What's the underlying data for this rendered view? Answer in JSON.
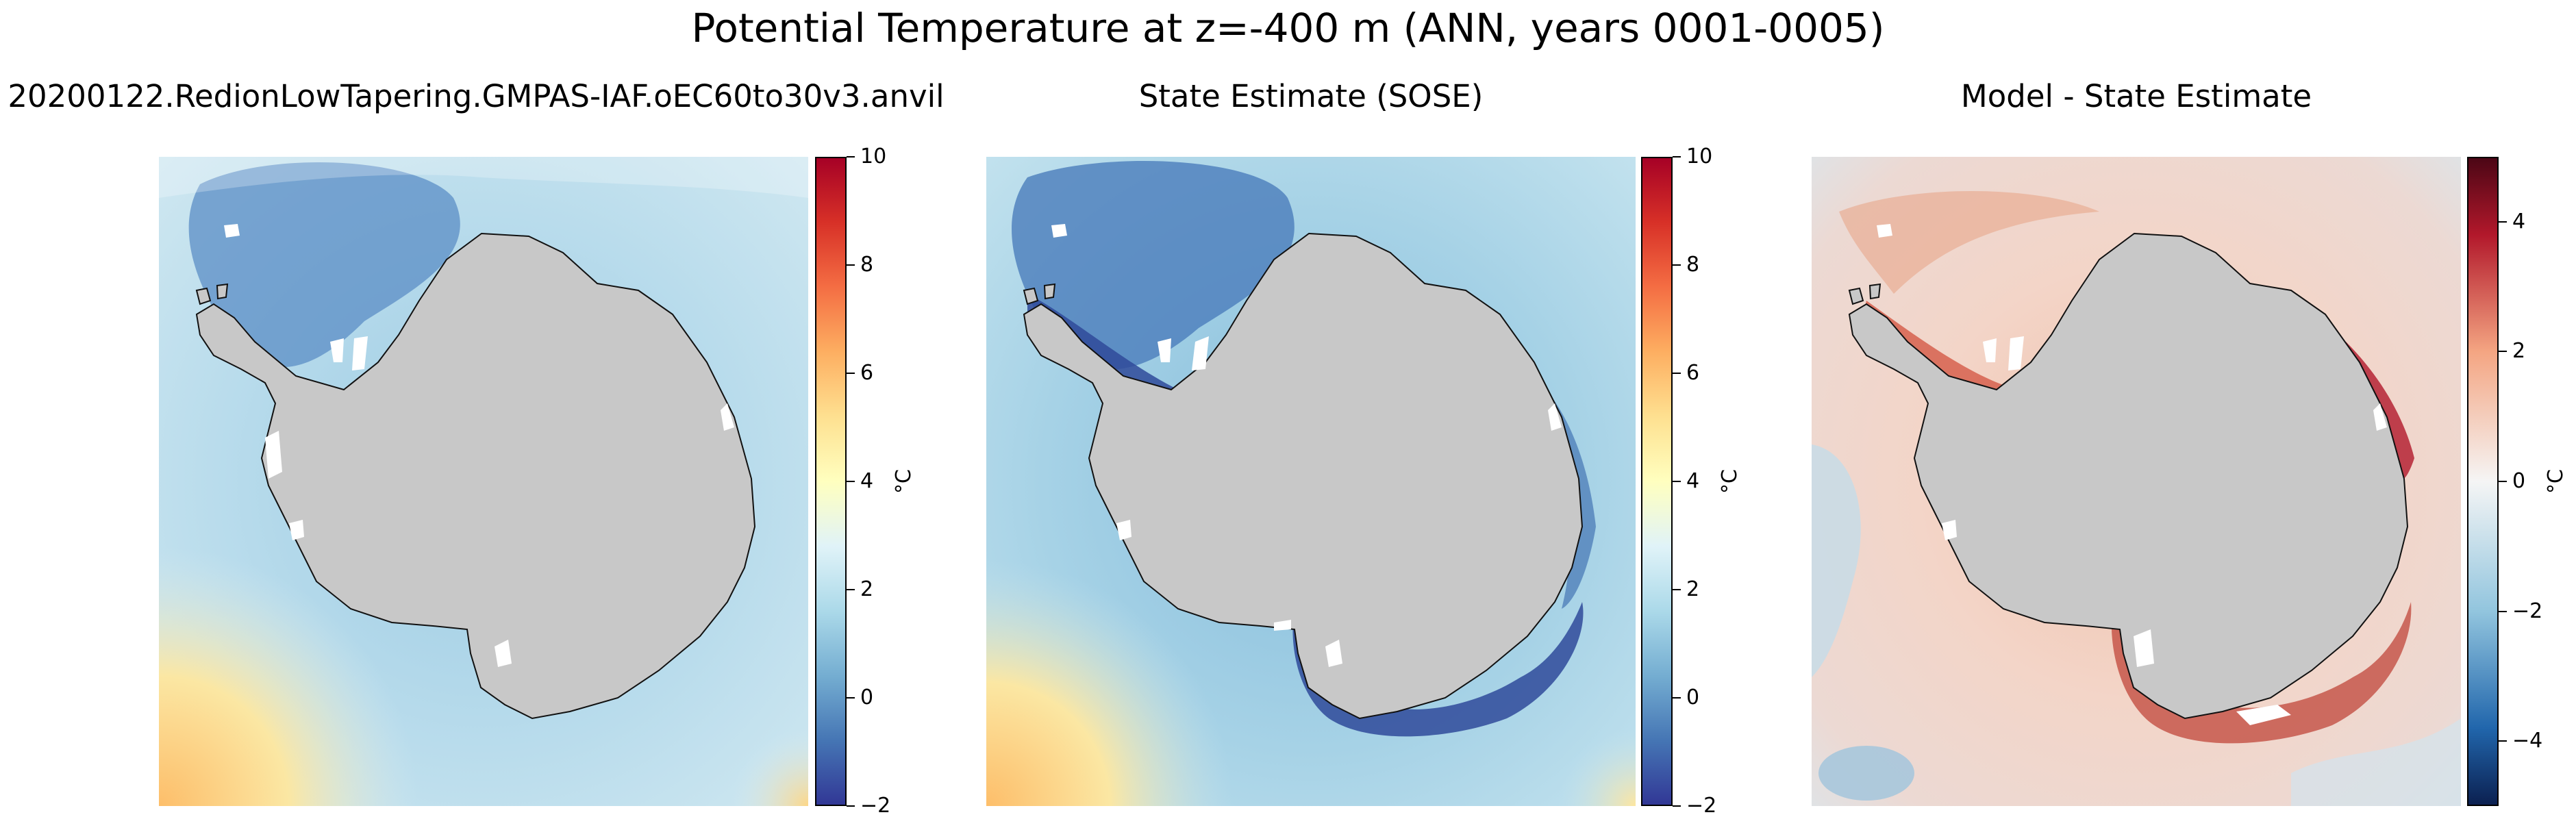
{
  "figure": {
    "title": "Potential Temperature at z=-400 m (ANN, years 0001-0005)"
  },
  "panels": [
    {
      "title": "20200122.RedionLowTapering.GMPAS-IAF.oEC60to30v3.anvil",
      "colorbar": {
        "unit": "°C",
        "min": -2,
        "max": 10,
        "ticks": [
          "−2",
          "0",
          "2",
          "4",
          "6",
          "8",
          "10"
        ],
        "tick_values": [
          -2,
          0,
          2,
          4,
          6,
          8,
          10
        ]
      }
    },
    {
      "title": "State Estimate (SOSE)",
      "colorbar": {
        "unit": "°C",
        "min": -2,
        "max": 10,
        "ticks": [
          "−2",
          "0",
          "2",
          "4",
          "6",
          "8",
          "10"
        ],
        "tick_values": [
          -2,
          0,
          2,
          4,
          6,
          8,
          10
        ]
      }
    },
    {
      "title": "Model - State Estimate",
      "colorbar": {
        "unit": "°C",
        "min": -5,
        "max": 5,
        "ticks": [
          "−4",
          "−2",
          "0",
          "2",
          "4"
        ],
        "tick_values": [
          -4,
          -2,
          0,
          2,
          4
        ]
      }
    }
  ],
  "colors": {
    "land": "#c8c8c8",
    "coast": "#111111",
    "temp_cold": "#313695",
    "temp_mid": "#ffffbf",
    "temp_warm": "#a50026",
    "diff_neg": "#0b1f4f",
    "diff_zero": "#f5f5f5",
    "diff_pos": "#4a0615"
  }
}
